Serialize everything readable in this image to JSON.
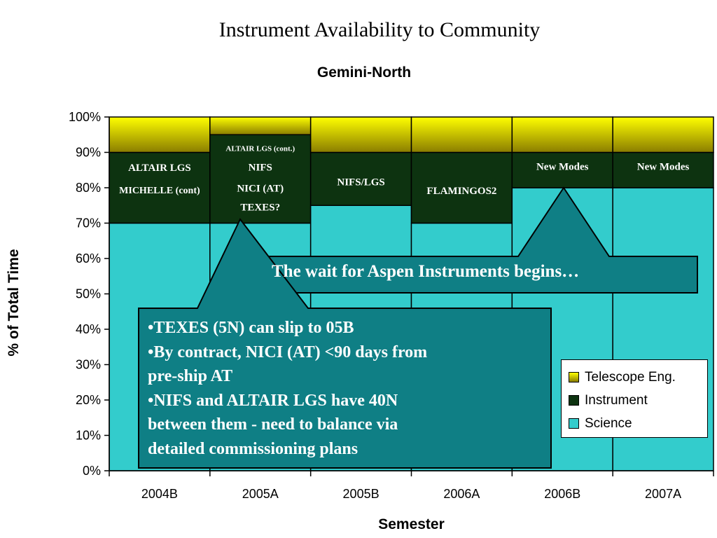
{
  "slide_title": "Instrument Availability to Community",
  "chart_data": {
    "type": "bar",
    "stacked": true,
    "title": "Gemini-North",
    "xlabel": "Semester",
    "ylabel": "% of Total Time",
    "categories": [
      "2004B",
      "2005A",
      "2005B",
      "2006A",
      "2006B",
      "2007A"
    ],
    "series": [
      {
        "name": "Science",
        "color": "#33cccc",
        "values": [
          70,
          70,
          75,
          70,
          80,
          80
        ]
      },
      {
        "name": "Instrument",
        "color": "#0d3310",
        "values": [
          20,
          25,
          15,
          20,
          10,
          10
        ]
      },
      {
        "name": "Telescope Eng.",
        "color": "#e6e600",
        "values": [
          10,
          5,
          10,
          10,
          10,
          10
        ]
      }
    ],
    "ylim": [
      0,
      100
    ],
    "yticks": [
      "0%",
      "10%",
      "20%",
      "30%",
      "40%",
      "50%",
      "60%",
      "70%",
      "80%",
      "90%",
      "100%"
    ],
    "legend_position": "bottom-right",
    "bar_labels": [
      [
        "ALTAIR LGS",
        "MICHELLE (cont)"
      ],
      [
        "ALTAIR LGS (cont.)",
        "NIFS",
        "NICI (AT)",
        "TEXES?"
      ],
      [
        "NIFS/LGS"
      ],
      [
        "FLAMINGOS2"
      ],
      [
        "New Modes"
      ],
      [
        "New Modes"
      ]
    ]
  },
  "callouts": {
    "aspen": "The wait for Aspen Instruments begins…",
    "notes": [
      "•TEXES (5N) can slip to 05B",
      "•By contract, NICI (AT) <90 days from",
      "pre-ship AT",
      "•NIFS and ALTAIR LGS have 40N",
      "between them - need to balance via",
      "detailed commissioning plans"
    ]
  },
  "colors": {
    "callout_fill": "#0f7f85",
    "callout_border": "#000000"
  }
}
